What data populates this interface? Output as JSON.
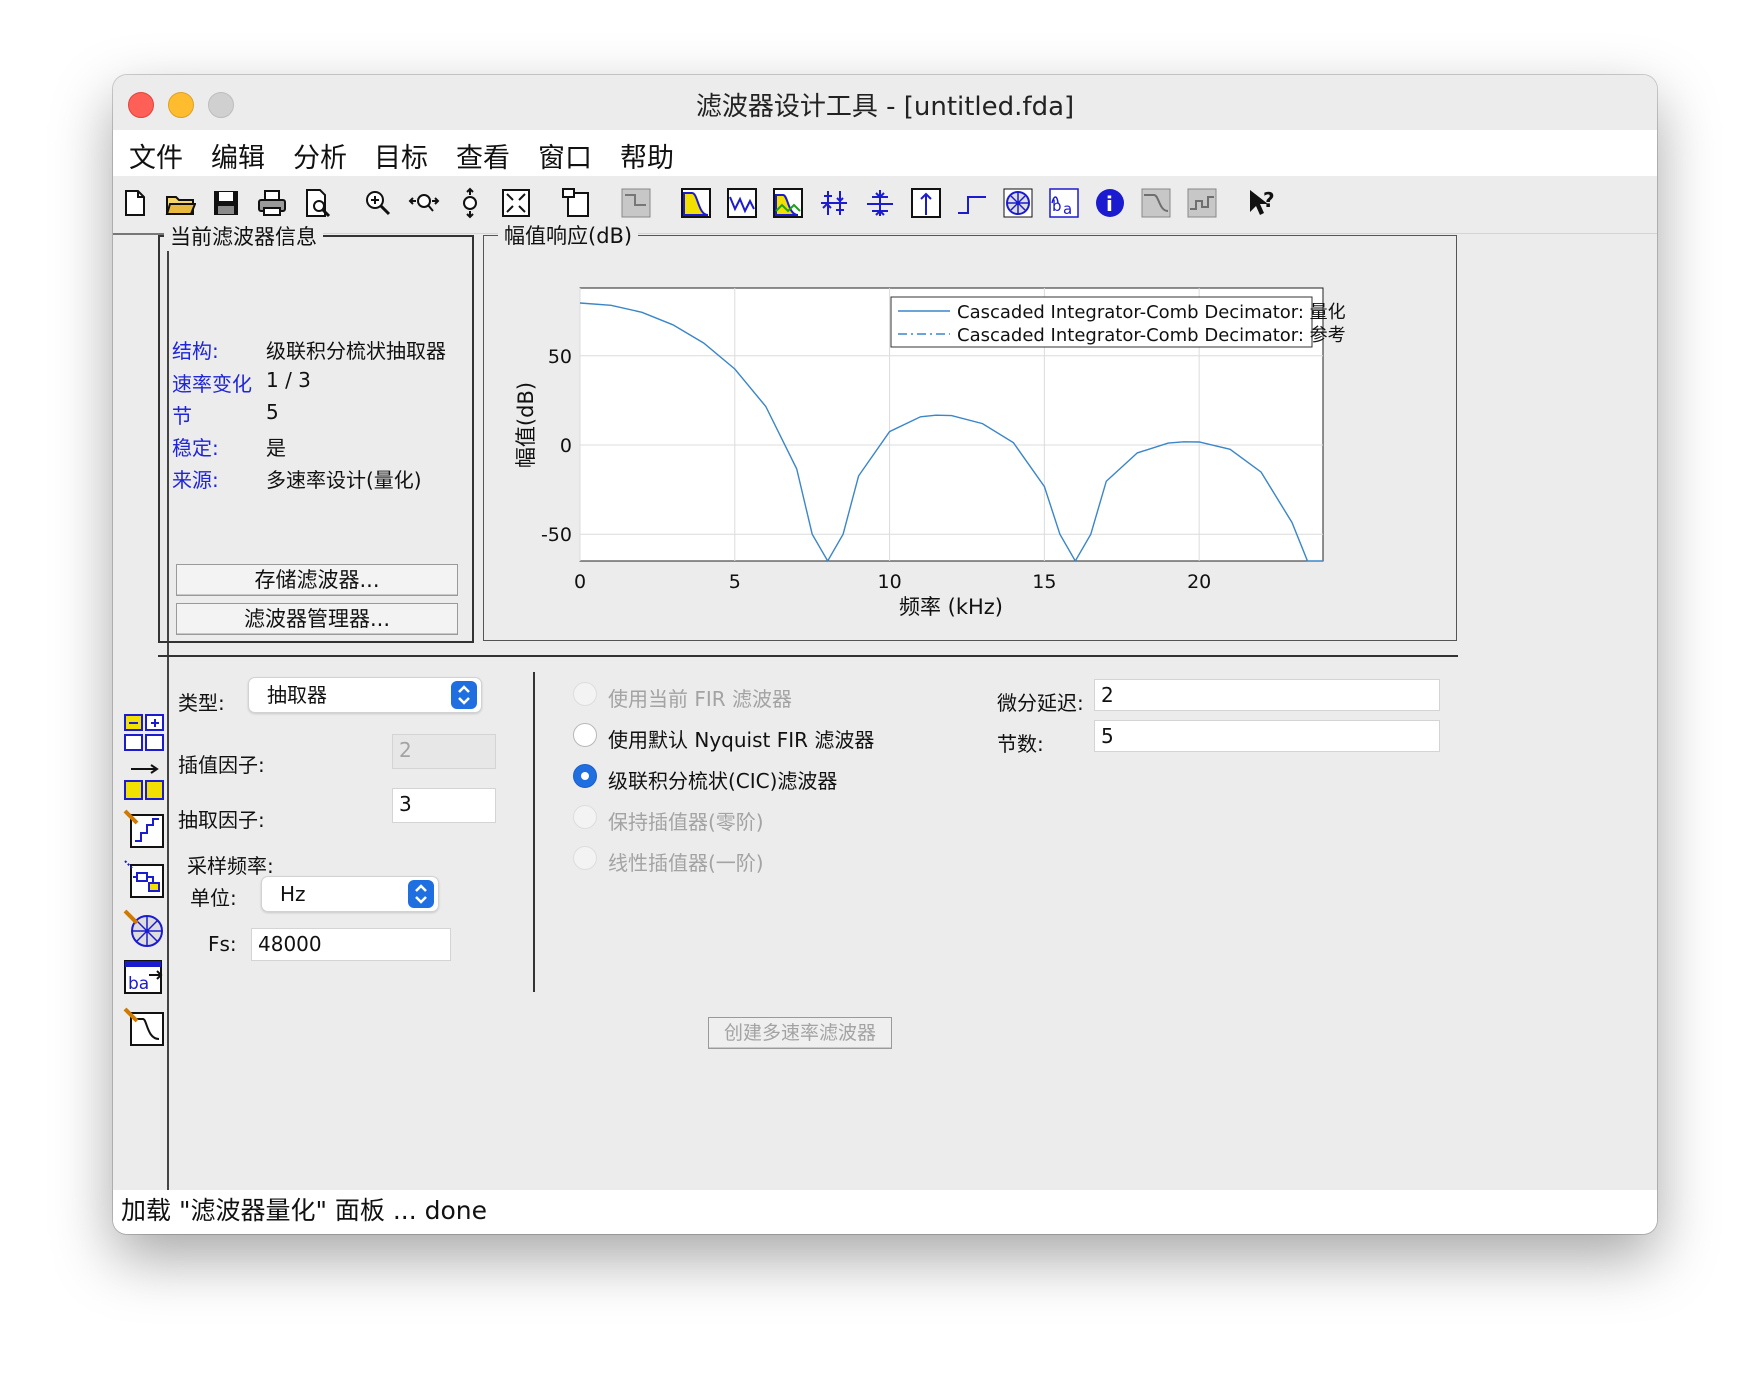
{
  "window": {
    "title": "滤波器设计工具 - [untitled.fda]"
  },
  "menu": [
    "文件",
    "编辑",
    "分析",
    "目标",
    "查看",
    "窗口",
    "帮助"
  ],
  "toolbar": {
    "icons": [
      "new-file-icon",
      "open-folder-icon",
      "save-icon",
      "print-icon",
      "print-preview-icon",
      "zoom-in-icon",
      "zoom-x-icon",
      "zoom-y-icon",
      "full-view-icon",
      "new-window-icon",
      "filter-spec-icon",
      "magnitude-response-icon",
      "phase-response-icon",
      "magnitude-phase-icon",
      "group-delay-icon",
      "phase-delay-icon",
      "impulse-response-icon",
      "step-response-icon",
      "pole-zero-icon",
      "coefficients-icon",
      "info-icon",
      "magnitude-estimate-icon",
      "noise-power-icon",
      "whats-this-icon"
    ]
  },
  "info_panel": {
    "title": "当前滤波器信息",
    "rows": [
      {
        "key": "结构:",
        "value": "级联积分梳状抽取器"
      },
      {
        "key": "速率变化",
        "value": "1 / 3"
      },
      {
        "key": "节",
        "value": "5"
      },
      {
        "key": "稳定:",
        "value": "是"
      },
      {
        "key": "来源:",
        "value": "多速率设计(量化)"
      }
    ],
    "store_button": "存储滤波器...",
    "manager_button": "滤波器管理器..."
  },
  "plot_panel": {
    "title": "幅值响应(dB)"
  },
  "chart_data": {
    "type": "line",
    "title": "",
    "xlabel": "频率 (kHz)",
    "ylabel": "幅值(dB)",
    "xlim": [
      0,
      24
    ],
    "ylim": [
      -65,
      88
    ],
    "xticks": [
      0,
      5,
      10,
      15,
      20
    ],
    "yticks": [
      -50,
      0,
      50
    ],
    "grid": true,
    "legend_position": "top-right",
    "series": [
      {
        "name": "Cascaded Integrator-Comb Decimator: 量化",
        "style": "solid",
        "color": "#3a86c8"
      },
      {
        "name": "Cascaded Integrator-Comb Decimator: 参考",
        "style": "dash-dot",
        "color": "#3a86c8"
      }
    ],
    "points": {
      "x": [
        0,
        1,
        2,
        3,
        4,
        5,
        6,
        7,
        7.5,
        8,
        8.5,
        9,
        10,
        11,
        11.5,
        12,
        13,
        14,
        15,
        15.5,
        16,
        16.5,
        17,
        18,
        19,
        19.5,
        20,
        21,
        22,
        23,
        23.5,
        24
      ],
      "y": [
        79.6,
        78.3,
        74.4,
        67.4,
        57.1,
        42.6,
        21.6,
        -13.4,
        -50,
        -65,
        -50,
        -17.3,
        7.5,
        15.8,
        16.7,
        16.5,
        12.0,
        1.3,
        -23.3,
        -50,
        -65,
        -50,
        -20.3,
        -4.4,
        1.1,
        1.8,
        1.7,
        -2.4,
        -15.2,
        -43.4,
        -65,
        -65
      ]
    }
  },
  "options": {
    "type_label": "类型:",
    "type_value": "抽取器",
    "interp_label": "插值因子:",
    "interp_value": "2",
    "decim_label": "抽取因子:",
    "decim_value": "3",
    "fs_group_label": "采样频率:",
    "unit_label": "单位:",
    "unit_value": "Hz",
    "fs_label": "Fs:",
    "fs_value": "48000",
    "radios": [
      {
        "label": "使用当前 FIR 滤波器",
        "state": "disabled"
      },
      {
        "label": "使用默认 Nyquist FIR 滤波器",
        "state": "off"
      },
      {
        "label": "级联积分梳状(CIC)滤波器",
        "state": "on"
      },
      {
        "label": "保持插值器(零阶)",
        "state": "disabled"
      },
      {
        "label": "线性插值器(一阶)",
        "state": "disabled"
      }
    ],
    "diff_delay_label": "微分延迟:",
    "diff_delay_value": "2",
    "sections_label": "节数:",
    "sections_value": "5",
    "create_button": "创建多速率滤波器"
  },
  "status": "加载 \"滤波器量化\" 面板 ... done"
}
